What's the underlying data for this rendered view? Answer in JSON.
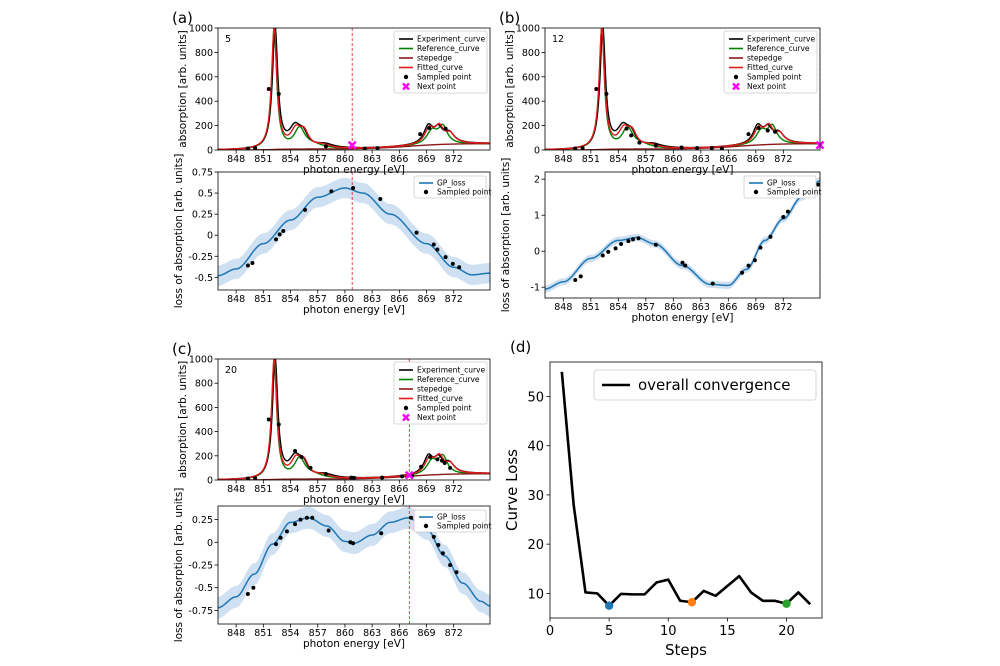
{
  "chart_data": [
    {
      "panel": "(a)",
      "type": "line",
      "role": "spectrum",
      "step": "5",
      "xlabel": "photon energy [eV]",
      "ylabel": "absorption [arb. units]",
      "xlim": [
        846,
        876
      ],
      "ylim": [
        0,
        1000
      ],
      "xticks": [
        848,
        851,
        854,
        857,
        860,
        863,
        866,
        869,
        872
      ],
      "yticks": [
        0,
        200,
        400,
        600,
        800,
        1000
      ],
      "legend": [
        "Experiment_curve",
        "Reference_curve",
        "stepedge",
        "Fitted_curve",
        "Sampled point",
        "Next point"
      ],
      "next_x": 860.8,
      "sampled": [
        [
          849.3,
          12
        ],
        [
          850.1,
          15
        ],
        [
          851.6,
          500
        ],
        [
          852.7,
          460
        ],
        [
          857.9,
          30
        ],
        [
          862.2,
          10
        ],
        [
          863.6,
          15
        ],
        [
          868.3,
          130
        ],
        [
          869.3,
          180
        ],
        [
          871.1,
          175
        ]
      ]
    },
    {
      "panel": "(a)",
      "type": "line",
      "role": "gp",
      "title": "",
      "xlabel": "photon energy [eV]",
      "ylabel": "loss of absorption [arb. units]",
      "xlim": [
        846,
        876
      ],
      "ylim": [
        -0.65,
        0.75
      ],
      "xticks": [
        848,
        851,
        854,
        857,
        860,
        863,
        866,
        869,
        872
      ],
      "yticks": [
        -0.5,
        -0.25,
        0.0,
        0.25,
        0.5,
        0.75
      ],
      "legend": [
        "GP_loss",
        "Sampled point"
      ],
      "next_x": 860.8,
      "gp_anchors": [
        [
          846,
          -0.48
        ],
        [
          848,
          -0.4
        ],
        [
          851,
          -0.1
        ],
        [
          854,
          0.18
        ],
        [
          857,
          0.45
        ],
        [
          860,
          0.56
        ],
        [
          862,
          0.5
        ],
        [
          865,
          0.25
        ],
        [
          869,
          -0.1
        ],
        [
          872,
          -0.38
        ],
        [
          874,
          -0.47
        ],
        [
          876,
          -0.45
        ]
      ],
      "band": 0.12,
      "sampled": [
        [
          849.3,
          -0.36
        ],
        [
          849.8,
          -0.33
        ],
        [
          852.4,
          -0.05
        ],
        [
          852.8,
          0.01
        ],
        [
          853.2,
          0.05
        ],
        [
          855.6,
          0.3
        ],
        [
          858.5,
          0.52
        ],
        [
          860.9,
          0.56
        ],
        [
          863.9,
          0.43
        ],
        [
          867.9,
          0.03
        ],
        [
          869.8,
          -0.11
        ],
        [
          870.2,
          -0.17
        ],
        [
          871.1,
          -0.26
        ],
        [
          871.9,
          -0.34
        ],
        [
          872.6,
          -0.38
        ]
      ]
    },
    {
      "panel": "(b)",
      "type": "line",
      "role": "spectrum",
      "step": "12",
      "xlabel": "photon energy [eV]",
      "ylabel": "absorption [arb. units]",
      "xlim": [
        846,
        876
      ],
      "ylim": [
        0,
        1000
      ],
      "xticks": [
        848,
        851,
        854,
        857,
        860,
        863,
        866,
        869,
        872
      ],
      "yticks": [
        0,
        200,
        400,
        600,
        800,
        1000
      ],
      "legend": [
        "Experiment_curve",
        "Reference_curve",
        "stepedge",
        "Fitted_curve",
        "Sampled point",
        "Next point"
      ],
      "next_x": 876,
      "sampled": [
        [
          849.3,
          12
        ],
        [
          850.1,
          15
        ],
        [
          851.6,
          500
        ],
        [
          852.7,
          460
        ],
        [
          854.9,
          175
        ],
        [
          855.4,
          120
        ],
        [
          856.3,
          60
        ],
        [
          858.1,
          35
        ],
        [
          860.9,
          20
        ],
        [
          862.6,
          15
        ],
        [
          864.2,
          15
        ],
        [
          865.3,
          12
        ],
        [
          868.2,
          130
        ],
        [
          869.3,
          180
        ],
        [
          870.3,
          160
        ],
        [
          871.1,
          150
        ]
      ]
    },
    {
      "panel": "(b)",
      "type": "line",
      "role": "gp",
      "title": "",
      "xlabel": "photon energy [eV]",
      "ylabel": "loss of absorption [arb. units]",
      "xlim": [
        846,
        876
      ],
      "ylim": [
        -1.3,
        2.2
      ],
      "xticks": [
        848,
        851,
        854,
        857,
        860,
        863,
        866,
        869,
        872
      ],
      "yticks": [
        -1,
        0,
        1,
        2
      ],
      "legend": [
        "GP_loss",
        "Sampled point"
      ],
      "next_x": 876,
      "gp_anchors": [
        [
          846,
          -1.05
        ],
        [
          848,
          -0.85
        ],
        [
          851,
          -0.2
        ],
        [
          854,
          0.3
        ],
        [
          856,
          0.38
        ],
        [
          858,
          0.2
        ],
        [
          861,
          -0.4
        ],
        [
          864,
          -0.92
        ],
        [
          866,
          -0.95
        ],
        [
          868,
          -0.5
        ],
        [
          870,
          0.3
        ],
        [
          872,
          0.9
        ],
        [
          874,
          1.5
        ],
        [
          876,
          1.95
        ]
      ],
      "band": 0.1,
      "sampled": [
        [
          849.3,
          -0.8
        ],
        [
          849.9,
          -0.7
        ],
        [
          852.3,
          -0.12
        ],
        [
          852.9,
          -0.02
        ],
        [
          853.7,
          0.08
        ],
        [
          854.3,
          0.2
        ],
        [
          855.1,
          0.28
        ],
        [
          855.6,
          0.33
        ],
        [
          856.2,
          0.36
        ],
        [
          858.1,
          0.18
        ],
        [
          861.0,
          -0.32
        ],
        [
          861.3,
          -0.4
        ],
        [
          864.3,
          -0.9
        ],
        [
          867.5,
          -0.6
        ],
        [
          868.2,
          -0.4
        ],
        [
          868.9,
          -0.25
        ],
        [
          869.5,
          0.1
        ],
        [
          870.6,
          0.4
        ],
        [
          872.0,
          0.95
        ],
        [
          872.5,
          1.1
        ],
        [
          875.8,
          1.85
        ]
      ]
    },
    {
      "panel": "(c)",
      "type": "line",
      "role": "spectrum",
      "step": "20",
      "xlabel": "photon energy [eV]",
      "ylabel": "absorption [arb. units]",
      "xlim": [
        846,
        876
      ],
      "ylim": [
        0,
        1000
      ],
      "xticks": [
        848,
        851,
        854,
        857,
        860,
        863,
        866,
        869,
        872
      ],
      "yticks": [
        0,
        200,
        400,
        600,
        800,
        1000
      ],
      "legend": [
        "Experiment_curve",
        "Reference_curve",
        "stepedge",
        "Fitted_curve",
        "Sampled point",
        "Next point"
      ],
      "next_x": 867.1,
      "sampled": [
        [
          849.3,
          12
        ],
        [
          850.1,
          15
        ],
        [
          851.6,
          500
        ],
        [
          852.7,
          460
        ],
        [
          854.5,
          240
        ],
        [
          855.2,
          190
        ],
        [
          856.2,
          100
        ],
        [
          857.9,
          50
        ],
        [
          860.7,
          20
        ],
        [
          861.0,
          18
        ],
        [
          864.1,
          20
        ],
        [
          866.3,
          30
        ],
        [
          867.4,
          35
        ],
        [
          868.4,
          110
        ],
        [
          869.4,
          190
        ],
        [
          870.2,
          170
        ],
        [
          870.7,
          160
        ],
        [
          871.0,
          140
        ],
        [
          871.6,
          100
        ]
      ]
    },
    {
      "panel": "(c)",
      "type": "line",
      "role": "gp",
      "title": "",
      "xlabel": "photon energy [eV]",
      "ylabel": "loss of absorption [arb. units]",
      "xlim": [
        846,
        876
      ],
      "ylim": [
        -0.9,
        0.4
      ],
      "xticks": [
        848,
        851,
        854,
        857,
        860,
        863,
        866,
        869,
        872
      ],
      "yticks": [
        -0.75,
        -0.5,
        -0.25,
        0.0,
        0.25
      ],
      "legend": [
        "GP_loss",
        "Sampled point"
      ],
      "next_x": 867.1,
      "gp_anchors": [
        [
          846,
          -0.72
        ],
        [
          848,
          -0.6
        ],
        [
          850,
          -0.35
        ],
        [
          852,
          -0.02
        ],
        [
          854,
          0.22
        ],
        [
          856,
          0.27
        ],
        [
          858,
          0.18
        ],
        [
          860,
          0.01
        ],
        [
          861,
          -0.01
        ],
        [
          863,
          0.08
        ],
        [
          865,
          0.22
        ],
        [
          867,
          0.27
        ],
        [
          869,
          0.15
        ],
        [
          871,
          -0.15
        ],
        [
          873,
          -0.45
        ],
        [
          875,
          -0.65
        ],
        [
          876,
          -0.7
        ]
      ],
      "band": 0.12,
      "sampled": [
        [
          849.3,
          -0.57
        ],
        [
          849.9,
          -0.5
        ],
        [
          852.4,
          -0.02
        ],
        [
          852.9,
          0.05
        ],
        [
          853.6,
          0.12
        ],
        [
          854.5,
          0.2
        ],
        [
          855.1,
          0.25
        ],
        [
          855.8,
          0.27
        ],
        [
          856.4,
          0.27
        ],
        [
          858.2,
          0.13
        ],
        [
          860.6,
          0.0
        ],
        [
          860.9,
          -0.01
        ],
        [
          864.0,
          0.1
        ],
        [
          867.3,
          0.27
        ],
        [
          868.2,
          0.25
        ],
        [
          868.8,
          0.18
        ],
        [
          869.2,
          0.13
        ],
        [
          869.8,
          0.06
        ],
        [
          870.3,
          -0.03
        ],
        [
          870.8,
          -0.12
        ],
        [
          871.6,
          -0.25
        ],
        [
          872.3,
          -0.33
        ]
      ]
    },
    {
      "panel": "(d)",
      "type": "line",
      "role": "convergence",
      "xlabel": "Steps",
      "ylabel": "Curve Loss",
      "xlim": [
        0,
        23
      ],
      "ylim": [
        5,
        57
      ],
      "xticks": [
        0,
        5,
        10,
        15,
        20
      ],
      "yticks": [
        10,
        20,
        30,
        40,
        50
      ],
      "legend": [
        "overall convergence"
      ],
      "x": [
        1,
        2,
        3,
        4,
        5,
        6,
        7,
        8,
        9,
        10,
        11,
        12,
        13,
        14,
        15,
        16,
        17,
        18,
        19,
        20,
        21,
        22
      ],
      "y": [
        55,
        28,
        10.2,
        10,
        7.5,
        9.9,
        9.8,
        9.8,
        12.2,
        12.8,
        8.5,
        8.2,
        10.5,
        9.5,
        11.5,
        13.5,
        10.2,
        8.5,
        8.5,
        7.9,
        10.2,
        7.8
      ],
      "highlights": [
        {
          "x": 5,
          "y": 7.5,
          "color": "#1f77b4"
        },
        {
          "x": 12,
          "y": 8.2,
          "color": "#ff7f0e"
        },
        {
          "x": 20,
          "y": 7.9,
          "color": "#2ca02c"
        }
      ]
    }
  ],
  "colors": {
    "experiment": "#000000",
    "reference": "#008000",
    "stepedge": "#8b1a1a",
    "fitted": "#e41a1c",
    "next": "#ff00ff",
    "gp": "#1f77b4",
    "band": "#c6dbef",
    "vline": "#e41a1c"
  }
}
